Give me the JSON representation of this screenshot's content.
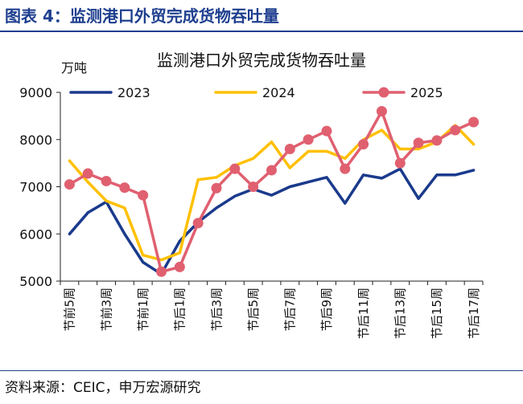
{
  "figure_title": "图表 4：监测港口外贸完成货物吞吐量",
  "source": "资料来源：CEIC，申万宏源研究",
  "chart_data": {
    "type": "line",
    "title": "监测港口外贸完成货物吞吐量",
    "ylabel": "万吨",
    "xlabel": "",
    "ylim": [
      5000,
      9000
    ],
    "yticks": [
      5000,
      6000,
      7000,
      8000,
      9000
    ],
    "grid": false,
    "legend_position": "top",
    "x_tick_labels": [
      "节前5周",
      "节前3周",
      "节前1周",
      "节后1周",
      "节后3周",
      "节后5周",
      "节后7周",
      "节后9周",
      "节后11周",
      "节后13周",
      "节后15周",
      "节后17周"
    ],
    "x_count": 23,
    "series": [
      {
        "name": "2023",
        "color": "#1a3a8c",
        "marker": false,
        "values": [
          6000,
          6450,
          6680,
          6000,
          5400,
          5150,
          5850,
          6250,
          6550,
          6800,
          6950,
          6820,
          7000,
          7100,
          7200,
          6650,
          7250,
          7180,
          7380,
          6750,
          7250,
          7250,
          7350
        ]
      },
      {
        "name": "2024",
        "color": "#ffc000",
        "marker": false,
        "values": [
          7550,
          7100,
          6700,
          6550,
          5550,
          5450,
          5600,
          7150,
          7200,
          7450,
          7600,
          7950,
          7400,
          7750,
          7750,
          7600,
          8000,
          8200,
          7800,
          7800,
          7950,
          8300,
          7900
        ]
      },
      {
        "name": "2025",
        "color": "#e06070",
        "marker": true,
        "values": [
          7050,
          7280,
          7120,
          6980,
          6820,
          5200,
          5300,
          6230,
          6970,
          7380,
          7000,
          7350,
          7800,
          8000,
          8180,
          7380,
          7900,
          8600,
          7500,
          7930,
          7980,
          8200,
          8370
        ]
      }
    ]
  }
}
